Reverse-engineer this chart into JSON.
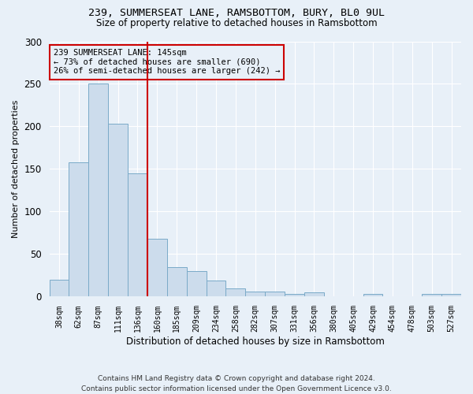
{
  "title1": "239, SUMMERSEAT LANE, RAMSBOTTOM, BURY, BL0 9UL",
  "title2": "Size of property relative to detached houses in Ramsbottom",
  "xlabel": "Distribution of detached houses by size in Ramsbottom",
  "ylabel": "Number of detached properties",
  "footer": "Contains HM Land Registry data © Crown copyright and database right 2024.\nContains public sector information licensed under the Open Government Licence v3.0.",
  "categories": [
    "38sqm",
    "62sqm",
    "87sqm",
    "111sqm",
    "136sqm",
    "160sqm",
    "185sqm",
    "209sqm",
    "234sqm",
    "258sqm",
    "282sqm",
    "307sqm",
    "331sqm",
    "356sqm",
    "380sqm",
    "405sqm",
    "429sqm",
    "454sqm",
    "478sqm",
    "503sqm",
    "527sqm"
  ],
  "values": [
    20,
    158,
    250,
    203,
    145,
    68,
    35,
    30,
    19,
    10,
    6,
    6,
    3,
    5,
    0,
    0,
    3,
    0,
    0,
    3,
    3
  ],
  "bar_color": "#ccdcec",
  "bar_edge_color": "#7aaac8",
  "ylim": [
    0,
    300
  ],
  "yticks": [
    0,
    50,
    100,
    150,
    200,
    250,
    300
  ],
  "property_bin_index": 4,
  "annotation_text": "239 SUMMERSEAT LANE: 145sqm\n← 73% of detached houses are smaller (690)\n26% of semi-detached houses are larger (242) →",
  "vline_color": "#cc0000",
  "annotation_box_color": "#cc0000",
  "bg_color": "#e8f0f8"
}
